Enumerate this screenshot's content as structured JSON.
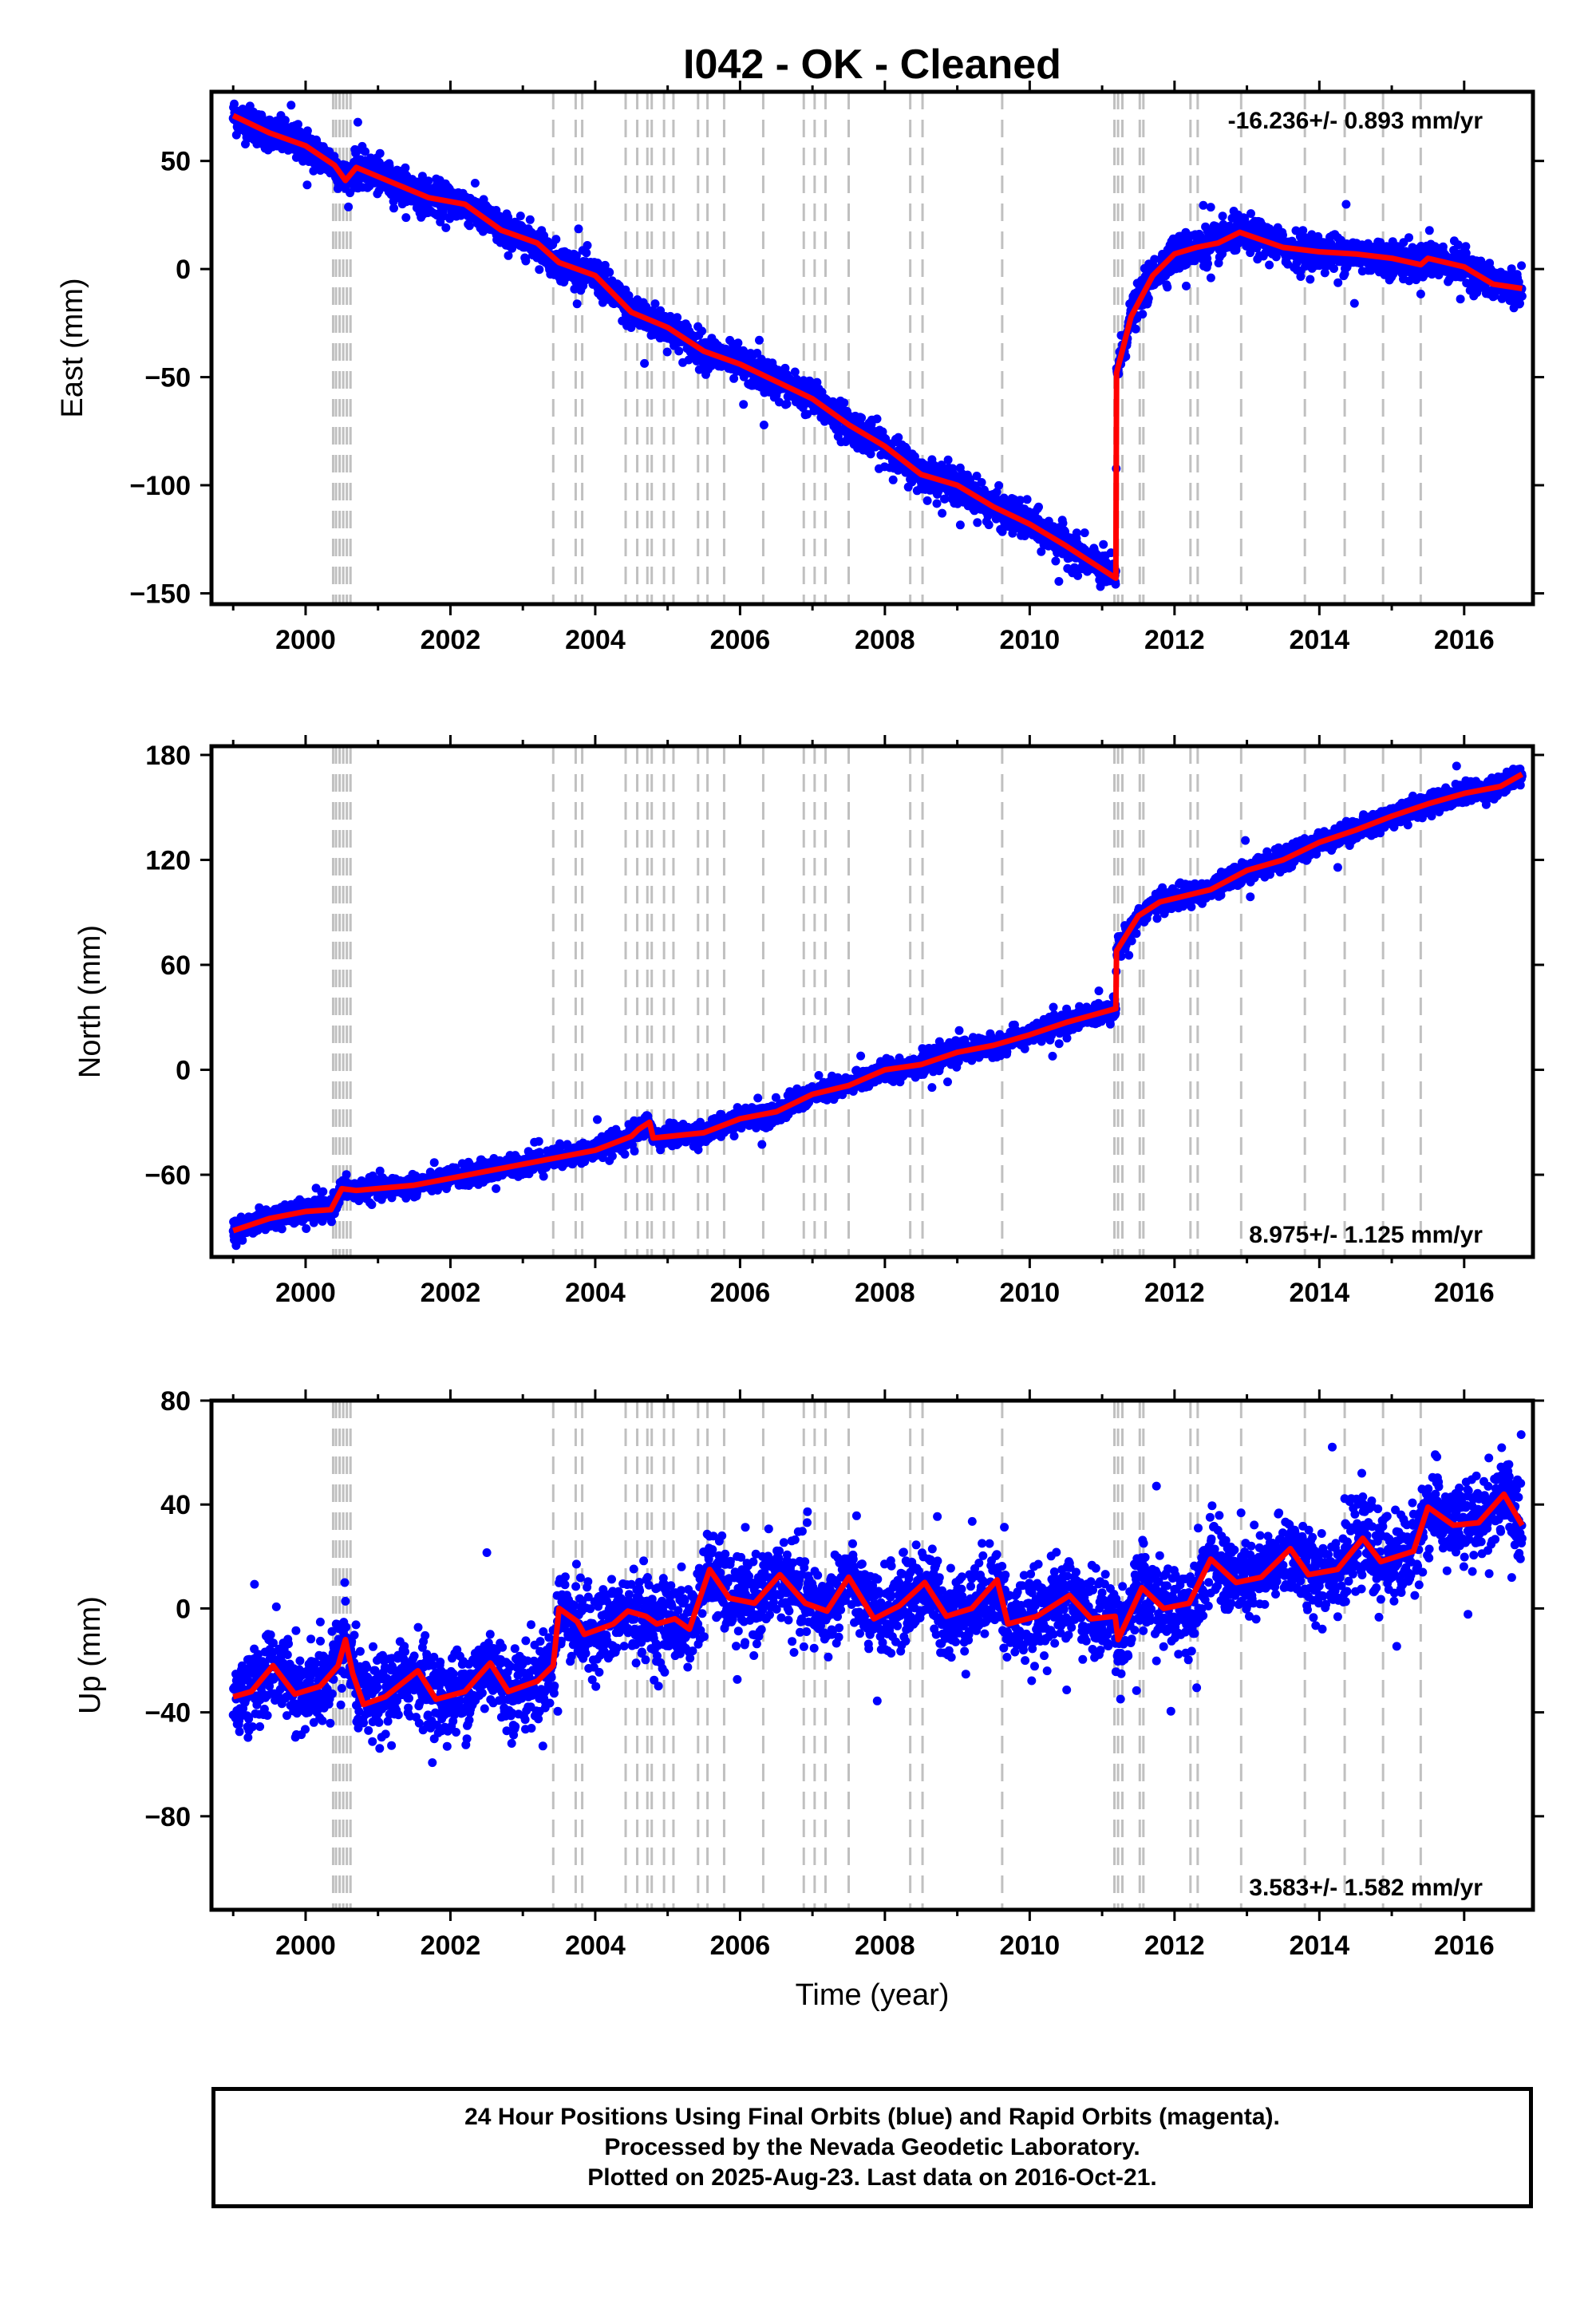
{
  "title": "I042  - OK - Cleaned",
  "xlabel": "Time (year)",
  "colors": {
    "points": "#0000ff",
    "model": "#ff0000",
    "events": "#c0c0c0",
    "frame": "#000000"
  },
  "footer": {
    "line1": "24 Hour Positions Using Final Orbits (blue) and Rapid Orbits (magenta).",
    "line2": "Processed by the Nevada Geodetic Laboratory.",
    "line3": "Plotted on 2025-Aug-23. Last data on 2016-Oct-21."
  },
  "chart_data": {
    "type": "scatter",
    "xlim": [
      1998.7,
      2016.95
    ],
    "x_ticks": [
      2000,
      2002,
      2004,
      2006,
      2008,
      2010,
      2012,
      2014,
      2016
    ],
    "event_lines": [
      2000.38,
      2000.42,
      2000.47,
      2000.52,
      2000.57,
      2000.62,
      2003.42,
      2003.73,
      2003.82,
      2004.42,
      2004.58,
      2004.72,
      2004.78,
      2004.95,
      2005.08,
      2005.42,
      2005.55,
      2005.78,
      2006.32,
      2006.88,
      2007.03,
      2007.18,
      2007.5,
      2008.35,
      2008.52,
      2009.62,
      2011.17,
      2011.22,
      2011.28,
      2011.52,
      2011.57,
      2012.22,
      2012.32,
      2012.92,
      2013.8,
      2014.35,
      2014.88,
      2015.4
    ],
    "panels": [
      {
        "name": "East",
        "ylabel": "East (mm)",
        "ylim": [
          -155,
          82
        ],
        "y_ticks": [
          50,
          0,
          -50,
          -100,
          -150
        ],
        "rate": "-16.236+/- 0.893 mm/yr",
        "rate_position": "top-right",
        "noise": 4,
        "model": [
          [
            1999.0,
            71
          ],
          [
            1999.5,
            63
          ],
          [
            2000.0,
            57
          ],
          [
            2000.4,
            48
          ],
          [
            2000.55,
            41
          ],
          [
            2000.7,
            47
          ],
          [
            2001.2,
            40
          ],
          [
            2001.7,
            33
          ],
          [
            2002.2,
            30
          ],
          [
            2002.7,
            18
          ],
          [
            2003.2,
            12
          ],
          [
            2003.5,
            3
          ],
          [
            2004.0,
            -3
          ],
          [
            2004.5,
            -20
          ],
          [
            2005.0,
            -27
          ],
          [
            2005.5,
            -38
          ],
          [
            2006.0,
            -44
          ],
          [
            2006.5,
            -52
          ],
          [
            2007.0,
            -60
          ],
          [
            2007.5,
            -72
          ],
          [
            2008.0,
            -82
          ],
          [
            2008.5,
            -95
          ],
          [
            2009.0,
            -100
          ],
          [
            2009.5,
            -110
          ],
          [
            2010.0,
            -118
          ],
          [
            2010.5,
            -128
          ],
          [
            2011.19,
            -143
          ],
          [
            2011.2,
            -48
          ],
          [
            2011.4,
            -22
          ],
          [
            2011.7,
            -3
          ],
          [
            2012.0,
            7
          ],
          [
            2012.3,
            10
          ],
          [
            2012.6,
            12
          ],
          [
            2012.9,
            17
          ],
          [
            2013.5,
            10
          ],
          [
            2014.0,
            8
          ],
          [
            2014.5,
            7
          ],
          [
            2015.0,
            5
          ],
          [
            2015.4,
            2
          ],
          [
            2015.5,
            5
          ],
          [
            2016.0,
            1
          ],
          [
            2016.4,
            -7
          ],
          [
            2016.8,
            -9
          ]
        ]
      },
      {
        "name": "North",
        "ylabel": "North (mm)",
        "ylim": [
          -107,
          185
        ],
        "y_ticks": [
          180,
          120,
          60,
          0,
          -60
        ],
        "rate": "8.975+/- 1.125 mm/yr",
        "rate_position": "bottom-right",
        "noise": 3,
        "model": [
          [
            1999.0,
            -92
          ],
          [
            1999.5,
            -85
          ],
          [
            2000.0,
            -81
          ],
          [
            2000.35,
            -80
          ],
          [
            2000.5,
            -68
          ],
          [
            2000.7,
            -69
          ],
          [
            2001.5,
            -66
          ],
          [
            2002.0,
            -62
          ],
          [
            2002.5,
            -58
          ],
          [
            2003.0,
            -54
          ],
          [
            2003.5,
            -50
          ],
          [
            2004.0,
            -46
          ],
          [
            2004.5,
            -38
          ],
          [
            2004.6,
            -34
          ],
          [
            2004.75,
            -30
          ],
          [
            2004.8,
            -39
          ],
          [
            2005.5,
            -36
          ],
          [
            2006.0,
            -28
          ],
          [
            2006.5,
            -24
          ],
          [
            2007.0,
            -14
          ],
          [
            2007.5,
            -9
          ],
          [
            2008.0,
            0
          ],
          [
            2008.5,
            3
          ],
          [
            2009.0,
            10
          ],
          [
            2009.5,
            14
          ],
          [
            2010.0,
            20
          ],
          [
            2010.5,
            27
          ],
          [
            2011.19,
            35
          ],
          [
            2011.2,
            68
          ],
          [
            2011.5,
            88
          ],
          [
            2011.8,
            96
          ],
          [
            2012.5,
            103
          ],
          [
            2013.0,
            114
          ],
          [
            2013.5,
            120
          ],
          [
            2014.0,
            130
          ],
          [
            2014.5,
            137
          ],
          [
            2015.0,
            145
          ],
          [
            2015.5,
            152
          ],
          [
            2016.0,
            158
          ],
          [
            2016.5,
            162
          ],
          [
            2016.8,
            169
          ]
        ]
      },
      {
        "name": "Up",
        "ylabel": "Up (mm)",
        "ylim": [
          -116,
          80
        ],
        "y_ticks": [
          80,
          40,
          0,
          -40,
          -80
        ],
        "rate": "3.583+/- 1.582 mm/yr",
        "rate_position": "bottom-right",
        "noise": 8,
        "model": [
          [
            1999.0,
            -34
          ],
          [
            1999.25,
            -32
          ],
          [
            1999.55,
            -22
          ],
          [
            1999.85,
            -33
          ],
          [
            2000.2,
            -30
          ],
          [
            2000.45,
            -22
          ],
          [
            2000.55,
            -12
          ],
          [
            2000.65,
            -25
          ],
          [
            2000.8,
            -37
          ],
          [
            2001.1,
            -34
          ],
          [
            2001.55,
            -24
          ],
          [
            2001.8,
            -35
          ],
          [
            2002.2,
            -32
          ],
          [
            2002.55,
            -21
          ],
          [
            2002.8,
            -32
          ],
          [
            2003.2,
            -28
          ],
          [
            2003.42,
            -22
          ],
          [
            2003.5,
            0
          ],
          [
            2003.75,
            -5
          ],
          [
            2003.85,
            -10
          ],
          [
            2004.25,
            -6
          ],
          [
            2004.45,
            -1
          ],
          [
            2004.7,
            -3
          ],
          [
            2004.85,
            -6
          ],
          [
            2005.1,
            -4
          ],
          [
            2005.3,
            -8
          ],
          [
            2005.58,
            15
          ],
          [
            2005.85,
            4
          ],
          [
            2006.2,
            2
          ],
          [
            2006.55,
            13
          ],
          [
            2006.9,
            2
          ],
          [
            2007.2,
            -1
          ],
          [
            2007.5,
            12
          ],
          [
            2007.85,
            -4
          ],
          [
            2008.2,
            1
          ],
          [
            2008.55,
            10
          ],
          [
            2008.85,
            -3
          ],
          [
            2009.2,
            0
          ],
          [
            2009.55,
            11
          ],
          [
            2009.7,
            -6
          ],
          [
            2010.1,
            -3
          ],
          [
            2010.55,
            5
          ],
          [
            2010.85,
            -4
          ],
          [
            2011.18,
            -3
          ],
          [
            2011.22,
            -12
          ],
          [
            2011.55,
            8
          ],
          [
            2011.85,
            0
          ],
          [
            2012.2,
            2
          ],
          [
            2012.5,
            19
          ],
          [
            2012.85,
            10
          ],
          [
            2013.2,
            12
          ],
          [
            2013.6,
            23
          ],
          [
            2013.85,
            13
          ],
          [
            2014.25,
            15
          ],
          [
            2014.6,
            27
          ],
          [
            2014.85,
            18
          ],
          [
            2015.3,
            22
          ],
          [
            2015.5,
            39
          ],
          [
            2015.85,
            32
          ],
          [
            2016.2,
            33
          ],
          [
            2016.55,
            44
          ],
          [
            2016.8,
            32
          ]
        ]
      }
    ]
  }
}
